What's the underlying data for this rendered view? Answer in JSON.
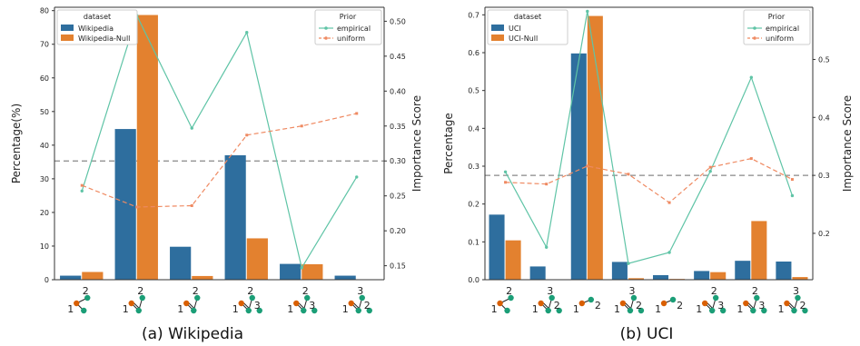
{
  "captions": [
    "(a) Wikipedia",
    "(b) UCI"
  ],
  "colors": {
    "series_a": "#2e6e9e",
    "series_b": "#e3812f",
    "empirical": "#5fc4a6",
    "uniform": "#ef8a62",
    "reference": "#888888",
    "node_orange": "#d95f02",
    "node_green": "#1b9e77"
  },
  "chart_data": [
    {
      "type": "bar",
      "title": "",
      "xlabel": "",
      "ylabel": "Percentage(%)",
      "y2label": "Importance Score",
      "ylim": [
        0,
        81
      ],
      "yticks": [
        0,
        10,
        20,
        30,
        40,
        50,
        60,
        70,
        80
      ],
      "y2lim": [
        0.13,
        0.52
      ],
      "y2ticks": [
        0.15,
        0.2,
        0.25,
        0.3,
        0.35,
        0.4,
        0.45,
        0.5
      ],
      "y2ticklabels": [
        "0.15",
        "0.20",
        "0.25",
        "0.30",
        "0.35",
        "0.40",
        "0.45",
        "0.50"
      ],
      "reference_line_y2": 0.3,
      "legend_dataset": {
        "title": "dataset",
        "position": "top-left"
      },
      "legend_prior": {
        "title": "Prior",
        "position": "top-right"
      },
      "series": [
        {
          "name": "Wikipedia",
          "values": [
            1.2,
            44.8,
            9.8,
            37.0,
            4.7,
            1.2
          ]
        },
        {
          "name": "Wikipedia-Null",
          "values": [
            2.3,
            78.7,
            1.1,
            12.3,
            4.6,
            0.1
          ]
        }
      ],
      "lines": [
        {
          "name": "empirical",
          "style": "solid",
          "values": [
            0.257,
            0.508,
            0.347,
            0.484,
            0.147,
            0.277
          ]
        },
        {
          "name": "uniform",
          "style": "dashed",
          "values": [
            0.265,
            0.234,
            0.236,
            0.337,
            0.35,
            0.368
          ]
        }
      ],
      "categories": [
        {
          "top": "2",
          "left": "1",
          "type": "triangle"
        },
        {
          "top": "2",
          "left": "1",
          "type": "parallel"
        },
        {
          "top": "2",
          "left": "1",
          "type": "parallel"
        },
        {
          "top": "2",
          "left": "1",
          "right": "3",
          "type": "parallel-wide"
        },
        {
          "top": "2",
          "left": "1",
          "right": "3",
          "type": "chain"
        },
        {
          "top": "3",
          "left": "1",
          "right": "2",
          "type": "fan"
        }
      ]
    },
    {
      "type": "bar",
      "title": "",
      "xlabel": "",
      "ylabel": "Percentage",
      "y2label": "Importance Score",
      "ylim": [
        0,
        0.72
      ],
      "yticks": [
        0.0,
        0.1,
        0.2,
        0.3,
        0.4,
        0.5,
        0.6,
        0.7
      ],
      "y2lim": [
        0.12,
        0.59
      ],
      "y2ticks": [
        0.2,
        0.3,
        0.4,
        0.5
      ],
      "y2ticklabels": [
        "0.2",
        "0.3",
        "0.4",
        "0.5"
      ],
      "reference_line_y2": 0.3,
      "legend_dataset": {
        "title": "dataset",
        "position": "top-left"
      },
      "legend_prior": {
        "title": "Prior",
        "position": "top-right"
      },
      "series": [
        {
          "name": "UCI",
          "values": [
            0.172,
            0.035,
            0.598,
            0.047,
            0.012,
            0.023,
            0.05,
            0.048
          ]
        },
        {
          "name": "UCI-Null",
          "values": [
            0.104,
            0.0,
            0.697,
            0.004,
            0.002,
            0.02,
            0.155,
            0.007
          ]
        }
      ],
      "lines": [
        {
          "name": "empirical",
          "style": "solid",
          "values": [
            0.306,
            0.176,
            0.583,
            0.148,
            0.167,
            0.307,
            0.469,
            0.265
          ]
        },
        {
          "name": "uniform",
          "style": "dashed",
          "values": [
            0.288,
            0.285,
            0.316,
            0.302,
            0.253,
            0.314,
            0.329,
            0.293
          ]
        }
      ],
      "categories": [
        {
          "top": "2",
          "left": "1",
          "type": "triangle"
        },
        {
          "top": "3",
          "left": "1",
          "right": "2",
          "type": "fan"
        },
        {
          "top": "",
          "left": "1",
          "right": "2",
          "type": "pair"
        },
        {
          "top": "3",
          "left": "1",
          "right": "2",
          "type": "fan"
        },
        {
          "top": "",
          "left": "1",
          "right": "2",
          "type": "pair"
        },
        {
          "top": "2",
          "left": "1",
          "right": "3",
          "type": "parallel-wide"
        },
        {
          "top": "2",
          "left": "1",
          "right": "3",
          "type": "chain"
        },
        {
          "top": "3",
          "left": "1",
          "right": "2",
          "type": "fan"
        }
      ]
    }
  ]
}
